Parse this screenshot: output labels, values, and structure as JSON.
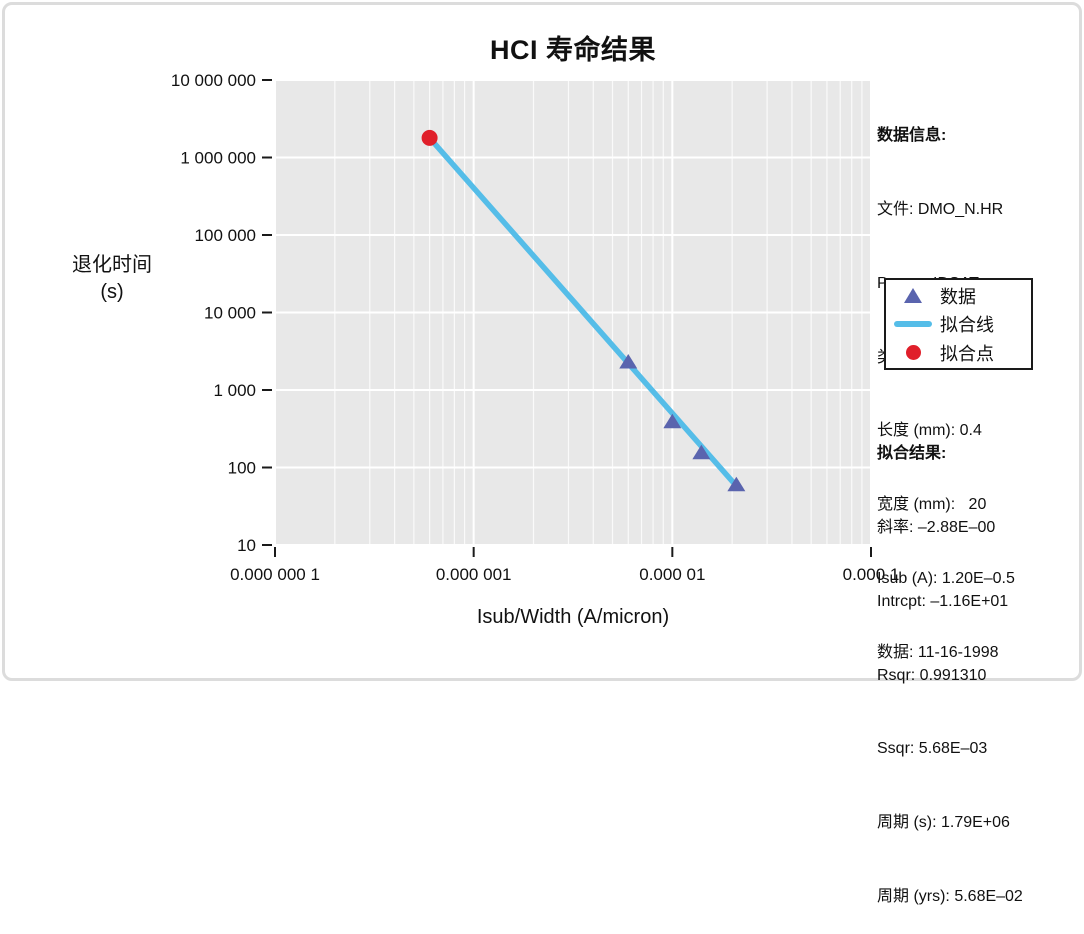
{
  "page": {
    "title": "HCI 寿命结果"
  },
  "axes": {
    "y_title_line1": "退化时间",
    "y_title_line2": "(s)",
    "x_title": "Isub/Width (A/micron)"
  },
  "info_panel": {
    "title": "数据信息:",
    "lines": [
      "文件: DMO_N.HR",
      "Param: IDSAT",
      "类型: N",
      "长度 (mm): 0.4",
      "宽度 (mm):   20",
      "Isub (A): 1.20E–0.5",
      "数据: 11-16-1998"
    ]
  },
  "legend": {
    "items": [
      {
        "marker": "triangle",
        "label": "数据"
      },
      {
        "marker": "line",
        "label": "拟合线"
      },
      {
        "marker": "dot",
        "label": "拟合点"
      }
    ]
  },
  "fit_panel": {
    "title": "拟合结果:",
    "lines": [
      "斜率: –2.88E–00",
      "Intrcpt: –1.16E+01",
      "Rsqr: 0.991310",
      "Ssqr: 5.68E–03",
      "周期 (s): 1.79E+06",
      "周期 (yrs): 5.68E–02"
    ]
  },
  "colors": {
    "data": "#5a64ae",
    "fit_line": "#55bde8",
    "fit_point": "#e01f2a",
    "plot_bg": "#e8e8e8",
    "grid": "#ffffff",
    "text": "#111111",
    "frame_border": "#dcdcdc"
  },
  "chart_data": {
    "type": "scatter",
    "title": "HCI 寿命结果",
    "xlabel": "Isub/Width (A/micron)",
    "ylabel": "退化时间 (s)",
    "x_scale": "log",
    "y_scale": "log",
    "xlim": [
      1e-07,
      0.0001
    ],
    "ylim": [
      10,
      10000000
    ],
    "grid": {
      "major": true,
      "minor_x": true,
      "minor_y": false
    },
    "legend_position": "right",
    "x_ticks": [
      {
        "value": 1e-07,
        "label": "0.000 000 1"
      },
      {
        "value": 1e-06,
        "label": "0.000 001"
      },
      {
        "value": 1e-05,
        "label": "0.000 01"
      },
      {
        "value": 0.0001,
        "label": "0.000 1"
      }
    ],
    "y_ticks": [
      {
        "value": 10000000,
        "label": "10 000 000"
      },
      {
        "value": 1000000,
        "label": "1 000 000"
      },
      {
        "value": 100000,
        "label": "100 000"
      },
      {
        "value": 10000,
        "label": "10 000"
      },
      {
        "value": 1000,
        "label": "1 000"
      },
      {
        "value": 100,
        "label": "100"
      },
      {
        "value": 10,
        "label": "10"
      }
    ],
    "series": [
      {
        "name": "数据",
        "type": "scatter",
        "marker": "triangle",
        "color": "#5a64ae",
        "points": [
          [
            6e-06,
            2300
          ],
          [
            1e-05,
            390
          ],
          [
            1.4e-05,
            155
          ],
          [
            2.1e-05,
            60
          ]
        ]
      },
      {
        "name": "拟合线",
        "type": "line",
        "color": "#55bde8",
        "points": [
          [
            6e-07,
            1790000
          ],
          [
            2.05e-05,
            62
          ]
        ]
      },
      {
        "name": "拟合点",
        "type": "scatter",
        "marker": "circle",
        "color": "#e01f2a",
        "points": [
          [
            6e-07,
            1790000
          ]
        ]
      }
    ]
  }
}
